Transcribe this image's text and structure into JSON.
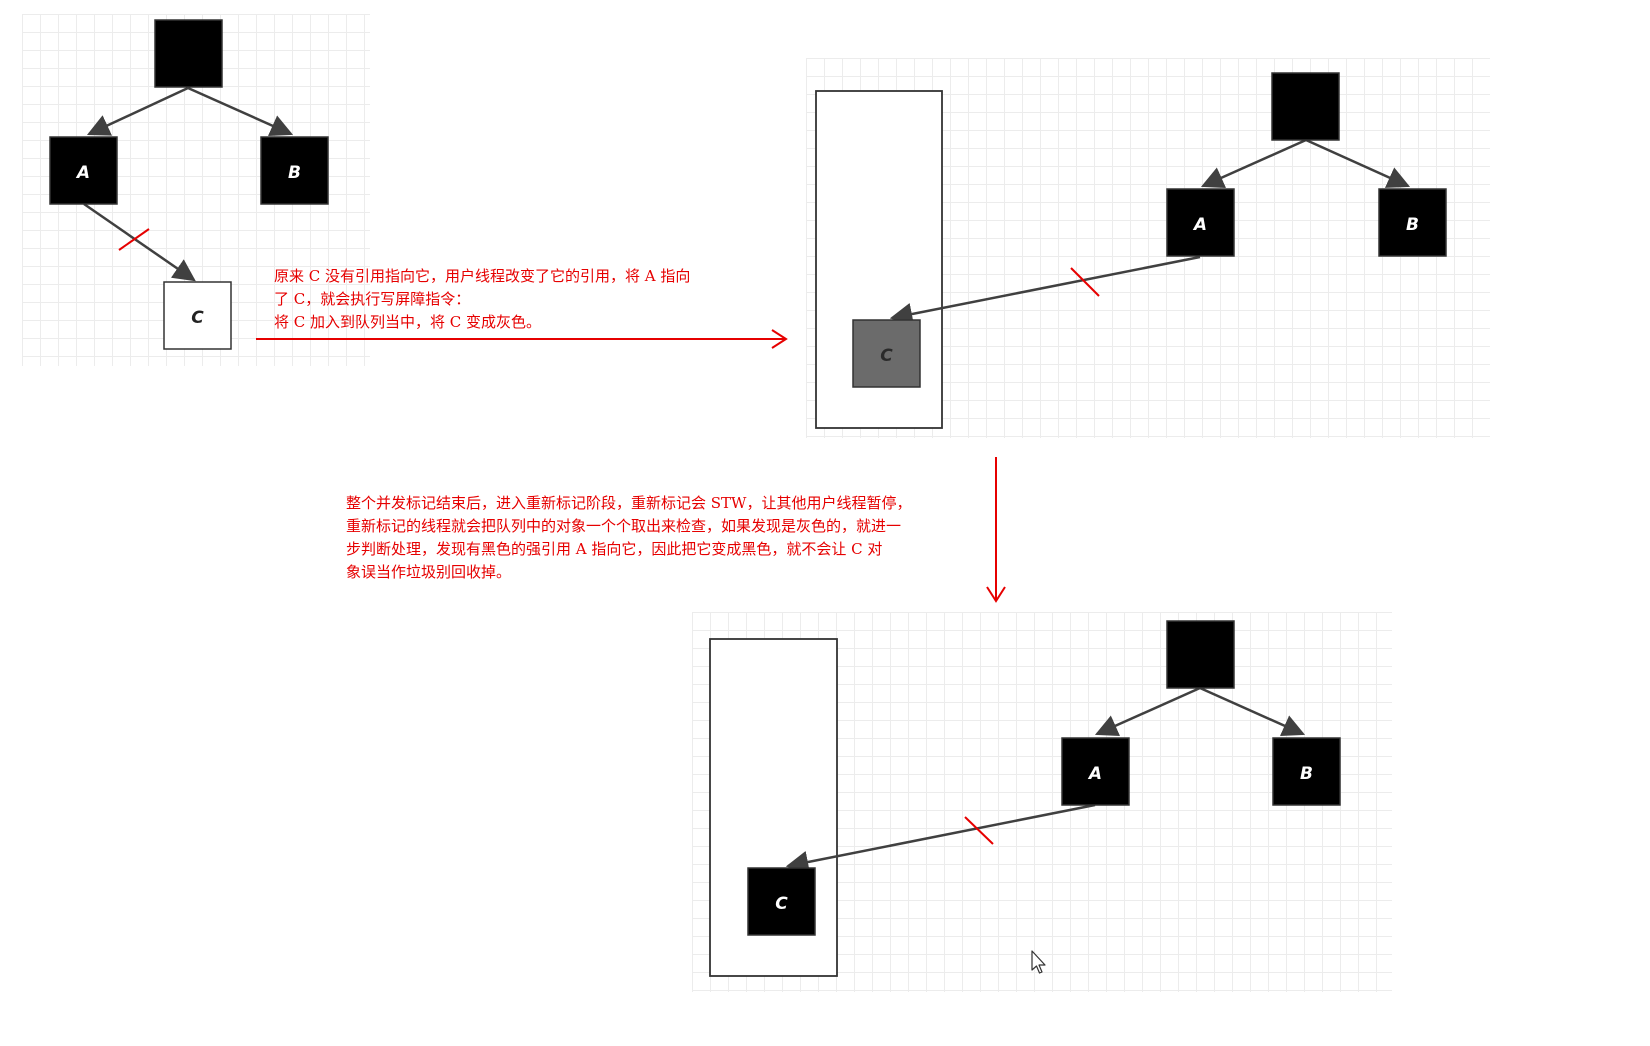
{
  "nodes": {
    "a": "A",
    "b": "B",
    "c": "C"
  },
  "colors": {
    "black_node": "#000000",
    "white_node": "#ffffff",
    "gray_node": "#6b6b6b",
    "edge": "#404040",
    "annotation": "#e60000",
    "grid": "#ececec"
  },
  "notes": {
    "write_barrier": [
      "原来 C 没有引用指向它，用户线程改变了它的引用，将 A 指向",
      "了 C，就会执行写屏障指令：",
      "将 C 加入到队列当中，将 C 变成灰色。"
    ],
    "remark": [
      "整个并发标记结束后，进入重新标记阶段，重新标记会 STW，让其他用户线程暂停，",
      "重新标记的线程就会把队列中的对象一个个取出来检查，如果发现是灰色的，就进一",
      "步判断处理，发现有黑色的强引用 A 指向它，因此把它变成黑色，就不会让 C 对",
      "象误当作垃圾别回收掉。"
    ]
  }
}
